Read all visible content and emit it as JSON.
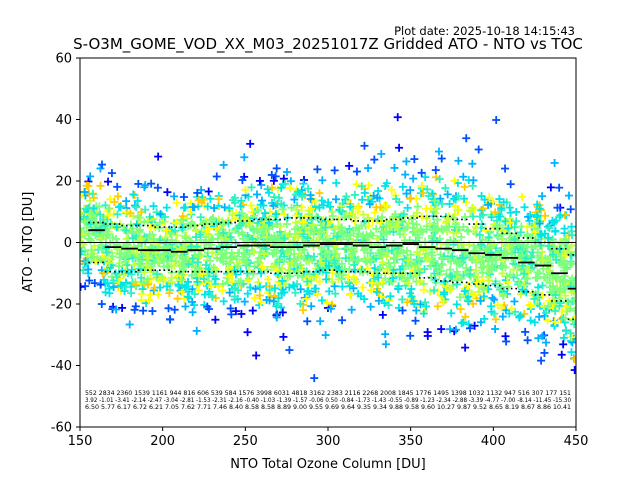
{
  "chart_data": {
    "type": "scatter",
    "title": "S-O3M_GOME_VOD_XX_M03_20251017Z Gridded ATO - NTO vs TOC",
    "plot_date": "Plot date: 2025-10-18 14:15:43",
    "xlabel": "NTO Total Ozone Column [DU]",
    "ylabel": "ATO - NTO [DU]",
    "xlim": [
      150,
      450
    ],
    "ylim": [
      -60,
      60
    ],
    "x_ticks": [
      "150",
      "200",
      "250",
      "300",
      "350",
      "400",
      "450"
    ],
    "y_ticks": [
      "60",
      "40",
      "20",
      "0",
      "-20",
      "-40",
      "-60"
    ],
    "marker": "+",
    "colors": [
      "#0000ff",
      "#0050ff",
      "#00b0ff",
      "#00e5e5",
      "#2ef0c0",
      "#7dff7d",
      "#c4ff3a",
      "#ffff00",
      "#ffcc00"
    ],
    "bin_centers": [
      160,
      170,
      180,
      190,
      200,
      210,
      220,
      230,
      240,
      250,
      260,
      270,
      280,
      290,
      300,
      310,
      320,
      330,
      340,
      350,
      360,
      370,
      380,
      390,
      400,
      410,
      420,
      430,
      440,
      450
    ],
    "mean": [
      4.0,
      -1.5,
      -2.0,
      -2.5,
      -2.5,
      -3.0,
      -2.5,
      -2.0,
      -1.5,
      -1.0,
      -1.0,
      -1.5,
      -1.5,
      -1.0,
      -0.5,
      -0.5,
      -1.0,
      -1.5,
      -1.0,
      -0.5,
      -1.5,
      -2.0,
      -2.5,
      -3.5,
      -4.0,
      -5.0,
      -6.5,
      -7.5,
      -10.0,
      -15.0
    ],
    "mean_plus_std": [
      6.5,
      6.0,
      5.5,
      5.5,
      5.0,
      5.0,
      5.5,
      6.0,
      6.5,
      7.0,
      7.5,
      7.5,
      8.0,
      8.0,
      7.5,
      7.5,
      7.0,
      7.0,
      7.5,
      8.0,
      8.5,
      8.5,
      7.5,
      6.0,
      4.5,
      3.0,
      1.5,
      0.0,
      -2.0,
      -4.0
    ],
    "mean_minus_std": [
      -6.5,
      -9.5,
      -9.5,
      -9.0,
      -9.0,
      -9.5,
      -9.5,
      -9.5,
      -9.5,
      -9.5,
      -9.5,
      -10.0,
      -10.0,
      -9.5,
      -9.0,
      -9.5,
      -9.5,
      -10.0,
      -10.0,
      -10.0,
      -11.5,
      -12.5,
      -13.0,
      -13.5,
      -14.0,
      -15.0,
      -16.0,
      -17.0,
      -19.0,
      -25.0
    ],
    "stats_rows": [
      "552 2834 2360 1539 1161 944 816 606 539 584 1576 3998 6031 4818 3162 2383 2116 2268 2008 1845 1776 1495 1398 1032 1132 947 516 307 177 151",
      "3.92 -1.01 -3.41 -2.14 -2.47 -3.04 -2.81 -1.53 -2.31 -2.16 -0.40 -1.03 -1.39 -1.57 -0.06 0.50 -0.84 -1.73 -1.43 -0.55 -0.89 -1.23 -2.34 -2.88 -3.39 -4.77 -7.00 -8.14 -11.45 -15.30",
      "6.50 5.77 6.17 6.72 6.21 7.05 7.62 7.71 7.46 8.40 8.58 8.58 8.89 9.00 9.55 9.69 9.64 9.35 9.34 9.88 9.58 9.60 10.27 9.87 9.52 8.65 8.19 8.67 8.86 10.41"
    ]
  }
}
